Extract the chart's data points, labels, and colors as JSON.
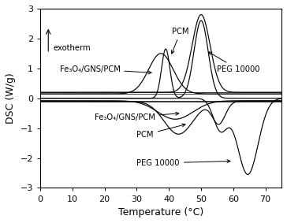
{
  "title": "",
  "xlabel": "Temperature (°C)",
  "ylabel": "DSC (W/g)",
  "xlim": [
    0,
    75
  ],
  "ylim": [
    -3,
    3
  ],
  "yticks": [
    -3,
    -2,
    -1,
    0,
    1,
    2,
    3
  ],
  "xticks": [
    0,
    10,
    20,
    30,
    40,
    50,
    60,
    70
  ],
  "background_color": "#ffffff",
  "line_color": "#000000",
  "exotherm_text": "exotherm",
  "label_PCM_heating": "PCM",
  "label_Fe3O4_heating": "Fe₃O₄/GNS/PCM",
  "label_PEG_heating": "PEG 10000",
  "label_Fe3O4_cooling": "Fe₃O₄/GNS/PCM",
  "label_PCM_cooling": "PCM",
  "label_PEG_cooling": "PEG 10000",
  "baseline_heating_PEG": 0.2,
  "baseline_heating_Fe3O4": 0.15,
  "baseline_cooling_Fe3O4": -0.08,
  "baseline_cooling_PCM": -0.1
}
